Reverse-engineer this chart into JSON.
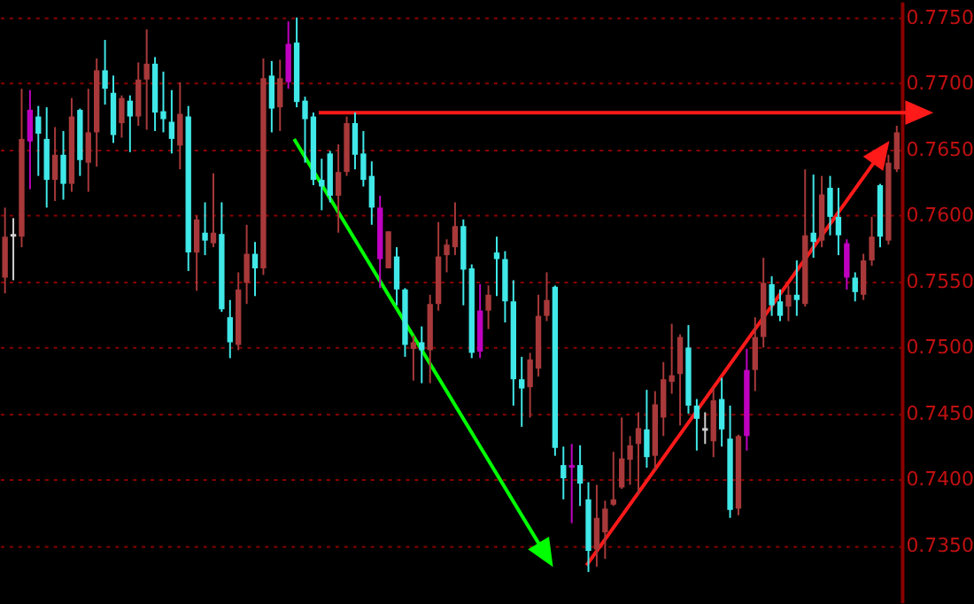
{
  "chart_data": {
    "type": "candlestick",
    "categories": [
      null,
      null,
      null,
      null,
      null,
      null,
      null,
      null,
      null,
      null,
      null,
      null,
      null,
      null,
      null,
      null,
      null,
      null,
      null,
      null,
      null,
      null,
      null,
      null,
      null,
      null,
      null,
      null,
      null,
      null,
      null,
      null,
      null,
      null,
      null,
      null,
      null,
      null,
      null,
      null,
      null,
      null,
      null,
      null,
      null,
      null,
      null,
      null,
      null,
      null,
      null,
      null,
      null,
      null,
      null,
      null,
      null,
      null,
      null,
      null,
      null,
      null,
      null,
      null,
      null,
      null,
      null,
      null,
      null,
      null,
      null,
      null,
      null,
      null,
      null,
      null,
      null,
      null,
      null,
      null,
      null,
      null,
      null,
      null,
      null,
      null,
      null,
      null,
      null,
      null,
      null,
      null,
      null,
      null,
      null,
      null,
      null,
      null,
      null,
      null,
      null,
      null,
      null,
      null,
      null,
      null,
      null,
      null
    ],
    "ohlc": [
      [
        0.7553,
        0.7606,
        0.7541,
        0.7584
      ],
      [
        0.7586,
        0.7598,
        0.7551,
        0.7584
      ],
      [
        0.7584,
        0.7696,
        0.7576,
        0.7658
      ],
      [
        0.768,
        0.7695,
        0.762,
        0.7656
      ],
      [
        0.7675,
        0.7683,
        0.763,
        0.7662
      ],
      [
        0.7658,
        0.7682,
        0.7606,
        0.7627
      ],
      [
        0.7627,
        0.7667,
        0.7611,
        0.7646
      ],
      [
        0.7646,
        0.7664,
        0.7612,
        0.7624
      ],
      [
        0.7624,
        0.7689,
        0.7618,
        0.7675
      ],
      [
        0.768,
        0.7681,
        0.763,
        0.7642
      ],
      [
        0.764,
        0.7696,
        0.7618,
        0.7663
      ],
      [
        0.7663,
        0.7719,
        0.7637,
        0.771
      ],
      [
        0.771,
        0.7733,
        0.7684,
        0.7696
      ],
      [
        0.7693,
        0.7706,
        0.7655,
        0.7661
      ],
      [
        0.767,
        0.7691,
        0.7659,
        0.7689
      ],
      [
        0.7687,
        0.7691,
        0.7648,
        0.7675
      ],
      [
        0.7675,
        0.7716,
        0.7668,
        0.7703
      ],
      [
        0.7703,
        0.7741,
        0.7665,
        0.7715
      ],
      [
        0.7715,
        0.772,
        0.7664,
        0.7678
      ],
      [
        0.7679,
        0.7709,
        0.7663,
        0.7673
      ],
      [
        0.7671,
        0.7695,
        0.7647,
        0.7658
      ],
      [
        0.7653,
        0.7701,
        0.7635,
        0.7677
      ],
      [
        0.7675,
        0.7683,
        0.7558,
        0.7572
      ],
      [
        0.7572,
        0.76,
        0.7543,
        0.7597
      ],
      [
        0.7587,
        0.761,
        0.757,
        0.7581
      ],
      [
        0.7579,
        0.7632,
        0.7576,
        0.7587
      ],
      [
        0.7586,
        0.761,
        0.7527,
        0.7529
      ],
      [
        0.7523,
        0.7536,
        0.7492,
        0.7504
      ],
      [
        0.7502,
        0.7557,
        0.7498,
        0.7544
      ],
      [
        0.7549,
        0.7593,
        0.7533,
        0.7571
      ],
      [
        0.7571,
        0.758,
        0.7539,
        0.756
      ],
      [
        0.756,
        0.7719,
        0.7555,
        0.7704
      ],
      [
        0.7706,
        0.7717,
        0.7663,
        0.7681
      ],
      [
        0.7682,
        0.7718,
        0.7664,
        0.7704
      ],
      [
        0.773,
        0.7747,
        0.7696,
        0.7701
      ],
      [
        0.7731,
        0.775,
        0.7682,
        0.7686
      ],
      [
        0.7687,
        0.769,
        0.764,
        0.7673
      ],
      [
        0.7675,
        0.7678,
        0.7623,
        0.7627
      ],
      [
        0.7627,
        0.7643,
        0.7604,
        0.7622
      ],
      [
        0.7647,
        0.7649,
        0.761,
        0.7615
      ],
      [
        0.7615,
        0.7654,
        0.7587,
        0.7633
      ],
      [
        0.7633,
        0.7675,
        0.763,
        0.767
      ],
      [
        0.767,
        0.7678,
        0.7635,
        0.7646
      ],
      [
        0.7647,
        0.7664,
        0.7622,
        0.7627
      ],
      [
        0.763,
        0.7641,
        0.7593,
        0.7606
      ],
      [
        0.7606,
        0.7615,
        0.7545,
        0.7567
      ],
      [
        0.756,
        0.7588,
        0.756,
        0.7588
      ],
      [
        0.7569,
        0.7576,
        0.7532,
        0.7544
      ],
      [
        0.7544,
        0.7545,
        0.7493,
        0.7502
      ],
      [
        0.7499,
        0.7509,
        0.7475,
        0.7504
      ],
      [
        0.7504,
        0.7516,
        0.7473,
        0.7498
      ],
      [
        0.7498,
        0.754,
        0.7473,
        0.7533
      ],
      [
        0.7533,
        0.7595,
        0.7528,
        0.7569
      ],
      [
        0.757,
        0.7582,
        0.7557,
        0.7578
      ],
      [
        0.7576,
        0.761,
        0.757,
        0.7592
      ],
      [
        0.7592,
        0.7597,
        0.7532,
        0.7559
      ],
      [
        0.756,
        0.7563,
        0.7492,
        0.7496
      ],
      [
        0.7528,
        0.7548,
        0.7492,
        0.7497
      ],
      [
        0.7528,
        0.7547,
        0.7514,
        0.754
      ],
      [
        0.7572,
        0.7584,
        0.7539,
        0.7567
      ],
      [
        0.7567,
        0.7573,
        0.7519,
        0.7535
      ],
      [
        0.7535,
        0.7551,
        0.7456,
        0.7476
      ],
      [
        0.7476,
        0.7493,
        0.744,
        0.7469
      ],
      [
        0.747,
        0.7496,
        0.7447,
        0.7491
      ],
      [
        0.7484,
        0.754,
        0.7478,
        0.7524
      ],
      [
        0.7524,
        0.7557,
        0.752,
        0.7536
      ],
      [
        0.7546,
        0.7547,
        0.7418,
        0.7424
      ],
      [
        0.7411,
        0.7425,
        0.7385,
        0.7401
      ],
      [
        0.7411,
        0.7427,
        0.7367,
        0.7409
      ],
      [
        0.7411,
        0.7426,
        0.738,
        0.7397
      ],
      [
        0.7385,
        0.7398,
        0.733,
        0.7346
      ],
      [
        0.7347,
        0.7396,
        0.7334,
        0.7371
      ],
      [
        0.736,
        0.7384,
        0.734,
        0.7378
      ],
      [
        0.7381,
        0.7421,
        0.738,
        0.7385
      ],
      [
        0.7394,
        0.7447,
        0.7393,
        0.7416
      ],
      [
        0.7415,
        0.7433,
        0.7396,
        0.7426
      ],
      [
        0.7427,
        0.7451,
        0.7389,
        0.7439
      ],
      [
        0.7438,
        0.7468,
        0.7409,
        0.7417
      ],
      [
        0.7418,
        0.7467,
        0.7407,
        0.7457
      ],
      [
        0.7447,
        0.7489,
        0.7433,
        0.7476
      ],
      [
        0.7474,
        0.7518,
        0.7465,
        0.7479
      ],
      [
        0.748,
        0.751,
        0.7441,
        0.7508
      ],
      [
        0.75,
        0.7517,
        0.745,
        0.7456
      ],
      [
        0.7456,
        0.7461,
        0.7422,
        0.7446
      ],
      [
        0.7439,
        0.7451,
        0.7427,
        0.7437
      ],
      [
        0.7429,
        0.747,
        0.7417,
        0.746
      ],
      [
        0.7461,
        0.7477,
        0.7425,
        0.7438
      ],
      [
        0.7431,
        0.7456,
        0.7371,
        0.7377
      ],
      [
        0.7378,
        0.7434,
        0.7373,
        0.7433
      ],
      [
        0.7483,
        0.7499,
        0.7422,
        0.7433
      ],
      [
        0.7483,
        0.7523,
        0.7467,
        0.7508
      ],
      [
        0.7508,
        0.7568,
        0.75,
        0.7549
      ],
      [
        0.7548,
        0.7554,
        0.7524,
        0.7532
      ],
      [
        0.7535,
        0.7544,
        0.752,
        0.7524
      ],
      [
        0.7531,
        0.7547,
        0.752,
        0.754
      ],
      [
        0.754,
        0.7566,
        0.7524,
        0.7536
      ],
      [
        0.7533,
        0.7635,
        0.7531,
        0.7585
      ],
      [
        0.7587,
        0.7631,
        0.7568,
        0.758
      ],
      [
        0.7581,
        0.763,
        0.7576,
        0.7616
      ],
      [
        0.7621,
        0.763,
        0.7585,
        0.7599
      ],
      [
        0.7599,
        0.7621,
        0.757,
        0.7585
      ],
      [
        0.7579,
        0.7582,
        0.7544,
        0.7553
      ],
      [
        0.7553,
        0.7557,
        0.7535,
        0.7542
      ],
      [
        0.754,
        0.7571,
        0.7536,
        0.7566
      ],
      [
        0.7566,
        0.7599,
        0.7562,
        0.7584
      ],
      [
        0.7623,
        0.7624,
        0.7576,
        0.7584
      ],
      [
        0.7581,
        0.7646,
        0.7578,
        0.764
      ],
      [
        0.7635,
        0.7668,
        0.7633,
        0.7663
      ]
    ],
    "colors": [
      "#a8393a",
      "#d0d0d0",
      "#a8393a",
      "#c000c0",
      "#40e8e8",
      "#40e8e8",
      "#a8393a",
      "#40e8e8",
      "#a8393a",
      "#40e8e8",
      "#a8393a",
      "#a8393a",
      "#40e8e8",
      "#40e8e8",
      "#a8393a",
      "#40e8e8",
      "#a8393a",
      "#a8393a",
      "#40e8e8",
      "#40e8e8",
      "#40e8e8",
      "#a8393a",
      "#40e8e8",
      "#a8393a",
      "#40e8e8",
      "#a8393a",
      "#40e8e8",
      "#40e8e8",
      "#a8393a",
      "#a8393a",
      "#40e8e8",
      "#a8393a",
      "#40e8e8",
      "#a8393a",
      "#c000c0",
      "#40e8e8",
      "#40e8e8",
      "#40e8e8",
      "#40e8e8",
      "#40e8e8",
      "#a8393a",
      "#a8393a",
      "#40e8e8",
      "#40e8e8",
      "#40e8e8",
      "#c000c0",
      "#a8393a",
      "#40e8e8",
      "#40e8e8",
      "#a8393a",
      "#40e8e8",
      "#a8393a",
      "#a8393a",
      "#a8393a",
      "#a8393a",
      "#40e8e8",
      "#40e8e8",
      "#c000c0",
      "#a8393a",
      "#40e8e8",
      "#40e8e8",
      "#40e8e8",
      "#40e8e8",
      "#a8393a",
      "#a8393a",
      "#a8393a",
      "#40e8e8",
      "#40e8e8",
      "#c000c0",
      "#40e8e8",
      "#40e8e8",
      "#a8393a",
      "#a8393a",
      "#a8393a",
      "#a8393a",
      "#a8393a",
      "#a8393a",
      "#40e8e8",
      "#a8393a",
      "#a8393a",
      "#a8393a",
      "#a8393a",
      "#40e8e8",
      "#40e8e8",
      "#d0d0d0",
      "#a8393a",
      "#40e8e8",
      "#40e8e8",
      "#a8393a",
      "#c000c0",
      "#a8393a",
      "#a8393a",
      "#40e8e8",
      "#40e8e8",
      "#a8393a",
      "#40e8e8",
      "#a8393a",
      "#40e8e8",
      "#a8393a",
      "#40e8e8",
      "#40e8e8",
      "#c000c0",
      "#40e8e8",
      "#a8393a",
      "#a8393a",
      "#40e8e8",
      "#a8393a",
      "#a8393a"
    ],
    "ylim": [
      0.7307,
      0.7762
    ],
    "yticks": [
      {
        "value": 0.735,
        "label": "0.7350"
      },
      {
        "value": 0.74,
        "label": "0.7400"
      },
      {
        "value": 0.745,
        "label": "0.7450"
      },
      {
        "value": 0.75,
        "label": "0.7500"
      },
      {
        "value": 0.755,
        "label": "0.7550"
      },
      {
        "value": 0.76,
        "label": "0.7600"
      },
      {
        "value": 0.765,
        "label": "0.7650"
      },
      {
        "value": 0.77,
        "label": "0.7700"
      },
      {
        "value": 0.775,
        "label": "0.7750"
      }
    ],
    "grid": "y",
    "tick_labels": "y"
  }
}
